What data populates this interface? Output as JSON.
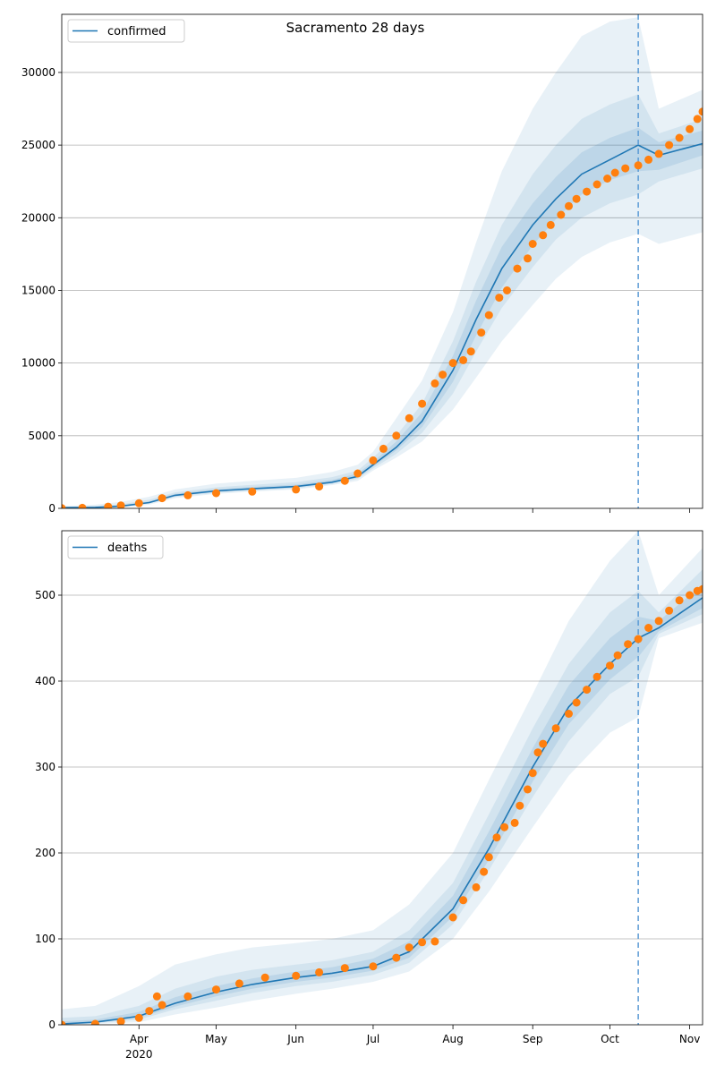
{
  "figure": {
    "title": "Sacramento 28 days"
  },
  "chart_data": [
    {
      "type": "line",
      "legend": {
        "label": "confirmed",
        "position": "upper left"
      },
      "xlim": [
        "2020-03-02",
        "2020-11-06"
      ],
      "ylim": [
        0,
        34000
      ],
      "yticks": [
        0,
        5000,
        10000,
        15000,
        20000,
        25000,
        30000
      ],
      "grid": "y",
      "forecast_start": "2020-10-12",
      "model_mean": {
        "x": [
          "2020-03-02",
          "2020-03-15",
          "2020-03-25",
          "2020-04-05",
          "2020-04-15",
          "2020-05-01",
          "2020-05-15",
          "2020-06-01",
          "2020-06-15",
          "2020-06-25",
          "2020-07-01",
          "2020-07-10",
          "2020-07-20",
          "2020-08-01",
          "2020-08-10",
          "2020-08-20",
          "2020-09-01",
          "2020-09-10",
          "2020-09-20",
          "2020-10-01",
          "2020-10-12",
          "2020-10-20",
          "2020-11-06"
        ],
        "y": [
          50,
          70,
          150,
          400,
          900,
          1200,
          1350,
          1500,
          1800,
          2200,
          3000,
          4200,
          6000,
          9500,
          13000,
          16500,
          19500,
          21300,
          23000,
          24000,
          25000,
          24300,
          25100
        ]
      },
      "bands": [
        {
          "level": "outer",
          "lower": [
            0,
            20,
            60,
            250,
            700,
            1000,
            1150,
            1300,
            1600,
            1900,
            2600,
            3500,
            4600,
            6800,
            9000,
            11500,
            14000,
            15800,
            17300,
            18300,
            18900,
            18200,
            19000
          ],
          "upper": [
            150,
            250,
            450,
            800,
            1300,
            1700,
            1900,
            2100,
            2500,
            3000,
            3900,
            6200,
            8800,
            13500,
            18300,
            23200,
            27500,
            30000,
            32500,
            33500,
            33800,
            27500,
            28800
          ]
        },
        {
          "level": "mid",
          "lower": [
            20,
            40,
            100,
            320,
            780,
            1080,
            1230,
            1380,
            1680,
            2030,
            2750,
            3750,
            5200,
            7900,
            10800,
            13800,
            16600,
            18500,
            20000,
            21000,
            21600,
            22500,
            23400
          ],
          "upper": [
            100,
            160,
            280,
            600,
            1100,
            1450,
            1620,
            1800,
            2150,
            2600,
            3500,
            5000,
            7200,
            11500,
            15600,
            19500,
            23000,
            25000,
            26800,
            27800,
            28500,
            25800,
            26800
          ]
        },
        {
          "level": "inner",
          "lower": [
            35,
            55,
            125,
            360,
            840,
            1140,
            1290,
            1440,
            1740,
            2120,
            2880,
            3980,
            5600,
            8700,
            11900,
            15200,
            18100,
            19900,
            21600,
            22600,
            23200,
            23300,
            24300
          ],
          "upper": [
            70,
            100,
            210,
            480,
            1000,
            1320,
            1480,
            1640,
            1960,
            2400,
            3200,
            4600,
            6600,
            10500,
            14300,
            18000,
            21000,
            22800,
            24500,
            25500,
            26200,
            25200,
            26000
          ]
        }
      ],
      "observed_series": "confirmed",
      "observed": [
        {
          "x": "2020-03-02",
          "y": 10
        },
        {
          "x": "2020-03-10",
          "y": 40
        },
        {
          "x": "2020-03-20",
          "y": 120
        },
        {
          "x": "2020-03-25",
          "y": 200
        },
        {
          "x": "2020-04-01",
          "y": 350
        },
        {
          "x": "2020-04-10",
          "y": 700
        },
        {
          "x": "2020-04-20",
          "y": 900
        },
        {
          "x": "2020-05-01",
          "y": 1050
        },
        {
          "x": "2020-05-15",
          "y": 1150
        },
        {
          "x": "2020-06-01",
          "y": 1300
        },
        {
          "x": "2020-06-10",
          "y": 1500
        },
        {
          "x": "2020-06-20",
          "y": 1900
        },
        {
          "x": "2020-06-25",
          "y": 2400
        },
        {
          "x": "2020-07-01",
          "y": 3300
        },
        {
          "x": "2020-07-05",
          "y": 4100
        },
        {
          "x": "2020-07-10",
          "y": 5000
        },
        {
          "x": "2020-07-15",
          "y": 6200
        },
        {
          "x": "2020-07-20",
          "y": 7200
        },
        {
          "x": "2020-07-25",
          "y": 8600
        },
        {
          "x": "2020-07-28",
          "y": 9200
        },
        {
          "x": "2020-08-01",
          "y": 10000
        },
        {
          "x": "2020-08-05",
          "y": 10200
        },
        {
          "x": "2020-08-08",
          "y": 10800
        },
        {
          "x": "2020-08-12",
          "y": 12100
        },
        {
          "x": "2020-08-15",
          "y": 13300
        },
        {
          "x": "2020-08-19",
          "y": 14500
        },
        {
          "x": "2020-08-22",
          "y": 15000
        },
        {
          "x": "2020-08-26",
          "y": 16500
        },
        {
          "x": "2020-08-30",
          "y": 17200
        },
        {
          "x": "2020-09-01",
          "y": 18200
        },
        {
          "x": "2020-09-05",
          "y": 18800
        },
        {
          "x": "2020-09-08",
          "y": 19500
        },
        {
          "x": "2020-09-12",
          "y": 20200
        },
        {
          "x": "2020-09-15",
          "y": 20800
        },
        {
          "x": "2020-09-18",
          "y": 21300
        },
        {
          "x": "2020-09-22",
          "y": 21800
        },
        {
          "x": "2020-09-26",
          "y": 22300
        },
        {
          "x": "2020-09-30",
          "y": 22700
        },
        {
          "x": "2020-10-03",
          "y": 23100
        },
        {
          "x": "2020-10-07",
          "y": 23400
        },
        {
          "x": "2020-10-12",
          "y": 23600
        },
        {
          "x": "2020-10-16",
          "y": 24000
        },
        {
          "x": "2020-10-20",
          "y": 24400
        },
        {
          "x": "2020-10-24",
          "y": 25000
        },
        {
          "x": "2020-10-28",
          "y": 25500
        },
        {
          "x": "2020-11-01",
          "y": 26100
        },
        {
          "x": "2020-11-04",
          "y": 26800
        },
        {
          "x": "2020-11-06",
          "y": 27300
        }
      ]
    },
    {
      "type": "line",
      "legend": {
        "label": "deaths",
        "position": "upper left"
      },
      "xlim": [
        "2020-03-02",
        "2020-11-06"
      ],
      "ylim": [
        0,
        575
      ],
      "yticks": [
        0,
        100,
        200,
        300,
        400,
        500
      ],
      "grid": "y",
      "forecast_start": "2020-10-12",
      "xticks": [
        "Apr",
        "May",
        "Jun",
        "Jul",
        "Aug",
        "Sep",
        "Oct",
        "Nov"
      ],
      "xtick_dates": [
        "2020-04-01",
        "2020-05-01",
        "2020-06-01",
        "2020-07-01",
        "2020-08-01",
        "2020-09-01",
        "2020-10-01",
        "2020-11-01"
      ],
      "year_label": "2020",
      "model_mean": {
        "x": [
          "2020-03-02",
          "2020-03-15",
          "2020-04-01",
          "2020-04-15",
          "2020-05-01",
          "2020-05-15",
          "2020-06-01",
          "2020-06-15",
          "2020-07-01",
          "2020-07-15",
          "2020-08-01",
          "2020-08-15",
          "2020-09-01",
          "2020-09-15",
          "2020-10-01",
          "2020-10-12",
          "2020-10-20",
          "2020-11-06"
        ],
        "y": [
          1,
          3,
          10,
          25,
          38,
          47,
          55,
          60,
          68,
          85,
          135,
          205,
          300,
          370,
          420,
          450,
          462,
          497
        ]
      },
      "bands": [
        {
          "level": "outer",
          "lower": [
            0,
            1,
            3,
            12,
            20,
            28,
            36,
            42,
            50,
            62,
            100,
            155,
            230,
            290,
            340,
            358,
            450,
            468
          ],
          "upper": [
            18,
            22,
            45,
            70,
            82,
            90,
            95,
            100,
            110,
            140,
            200,
            285,
            385,
            470,
            540,
            575,
            500,
            555
          ]
        },
        {
          "level": "mid",
          "lower": [
            0,
            2,
            6,
            18,
            28,
            37,
            45,
            50,
            58,
            72,
            117,
            180,
            265,
            330,
            385,
            405,
            455,
            478
          ],
          "upper": [
            8,
            10,
            22,
            42,
            56,
            64,
            70,
            75,
            85,
            110,
            165,
            245,
            345,
            420,
            480,
            505,
            480,
            530
          ]
        },
        {
          "level": "inner",
          "lower": [
            0,
            2,
            8,
            21,
            33,
            42,
            50,
            55,
            63,
            78,
            126,
            192,
            283,
            350,
            402,
            428,
            458,
            485
          ],
          "upper": [
            4,
            6,
            15,
            32,
            45,
            54,
            62,
            67,
            77,
            97,
            150,
            225,
            322,
            395,
            450,
            475,
            470,
            512
          ]
        }
      ],
      "observed_series": "deaths",
      "observed": [
        {
          "x": "2020-03-02",
          "y": 0
        },
        {
          "x": "2020-03-15",
          "y": 1
        },
        {
          "x": "2020-03-25",
          "y": 4
        },
        {
          "x": "2020-04-01",
          "y": 8
        },
        {
          "x": "2020-04-05",
          "y": 16
        },
        {
          "x": "2020-04-08",
          "y": 33
        },
        {
          "x": "2020-04-10",
          "y": 23
        },
        {
          "x": "2020-04-20",
          "y": 33
        },
        {
          "x": "2020-05-01",
          "y": 41
        },
        {
          "x": "2020-05-10",
          "y": 48
        },
        {
          "x": "2020-05-20",
          "y": 55
        },
        {
          "x": "2020-06-01",
          "y": 57
        },
        {
          "x": "2020-06-10",
          "y": 61
        },
        {
          "x": "2020-06-20",
          "y": 66
        },
        {
          "x": "2020-07-01",
          "y": 68
        },
        {
          "x": "2020-07-10",
          "y": 78
        },
        {
          "x": "2020-07-15",
          "y": 90
        },
        {
          "x": "2020-07-20",
          "y": 96
        },
        {
          "x": "2020-07-25",
          "y": 97
        },
        {
          "x": "2020-08-01",
          "y": 125
        },
        {
          "x": "2020-08-05",
          "y": 145
        },
        {
          "x": "2020-08-10",
          "y": 160
        },
        {
          "x": "2020-08-13",
          "y": 178
        },
        {
          "x": "2020-08-15",
          "y": 195
        },
        {
          "x": "2020-08-18",
          "y": 218
        },
        {
          "x": "2020-08-21",
          "y": 230
        },
        {
          "x": "2020-08-25",
          "y": 235
        },
        {
          "x": "2020-08-27",
          "y": 255
        },
        {
          "x": "2020-08-30",
          "y": 274
        },
        {
          "x": "2020-09-01",
          "y": 293
        },
        {
          "x": "2020-09-03",
          "y": 317
        },
        {
          "x": "2020-09-05",
          "y": 327
        },
        {
          "x": "2020-09-10",
          "y": 345
        },
        {
          "x": "2020-09-15",
          "y": 362
        },
        {
          "x": "2020-09-18",
          "y": 375
        },
        {
          "x": "2020-09-22",
          "y": 390
        },
        {
          "x": "2020-09-26",
          "y": 405
        },
        {
          "x": "2020-10-01",
          "y": 418
        },
        {
          "x": "2020-10-04",
          "y": 430
        },
        {
          "x": "2020-10-08",
          "y": 443
        },
        {
          "x": "2020-10-12",
          "y": 449
        },
        {
          "x": "2020-10-16",
          "y": 462
        },
        {
          "x": "2020-10-20",
          "y": 470
        },
        {
          "x": "2020-10-24",
          "y": 482
        },
        {
          "x": "2020-10-28",
          "y": 494
        },
        {
          "x": "2020-11-01",
          "y": 500
        },
        {
          "x": "2020-11-04",
          "y": 505
        },
        {
          "x": "2020-11-06",
          "y": 507
        }
      ]
    }
  ],
  "colors": {
    "model": "#1f77b4",
    "observed": "#ff7f0e",
    "band_fill": "#1f77b4",
    "grid": "#b0b0b0",
    "forecast_line": "#5b9bd5"
  }
}
